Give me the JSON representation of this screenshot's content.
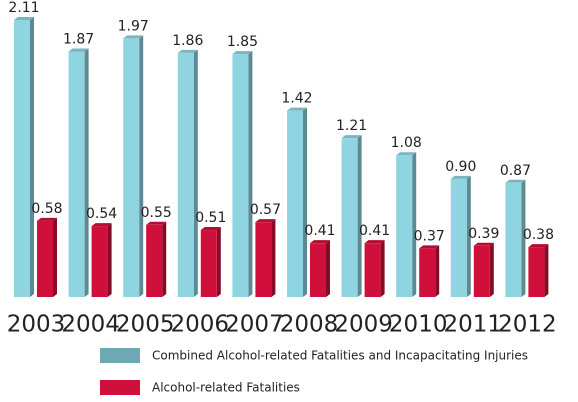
{
  "chart_data": {
    "type": "bar",
    "categories": [
      "2003",
      "2004",
      "2005",
      "2006",
      "2007",
      "2008",
      "2009",
      "2010",
      "2011",
      "2012"
    ],
    "series": [
      {
        "name": "Combined Alcohol-related Fatalities and Incapacitating Injuries",
        "color": "#8fd4e1",
        "values": [
          2.11,
          1.87,
          1.97,
          1.86,
          1.85,
          1.42,
          1.21,
          1.08,
          0.9,
          0.87
        ],
        "value_labels": [
          "2.11",
          "1.87",
          "1.97",
          "1.86",
          "1.85",
          "1.42",
          "1.21",
          "1.08",
          "0.90",
          "0.87"
        ]
      },
      {
        "name": "Alcohol-related Fatalities",
        "color": "#d0103a",
        "values": [
          0.58,
          0.54,
          0.55,
          0.51,
          0.57,
          0.41,
          0.41,
          0.37,
          0.39,
          0.38
        ],
        "value_labels": [
          "0.58",
          "0.54",
          "0.55",
          "0.51",
          "0.57",
          "0.41",
          "0.41",
          "0.37",
          "0.39",
          "0.38"
        ]
      }
    ]
  }
}
